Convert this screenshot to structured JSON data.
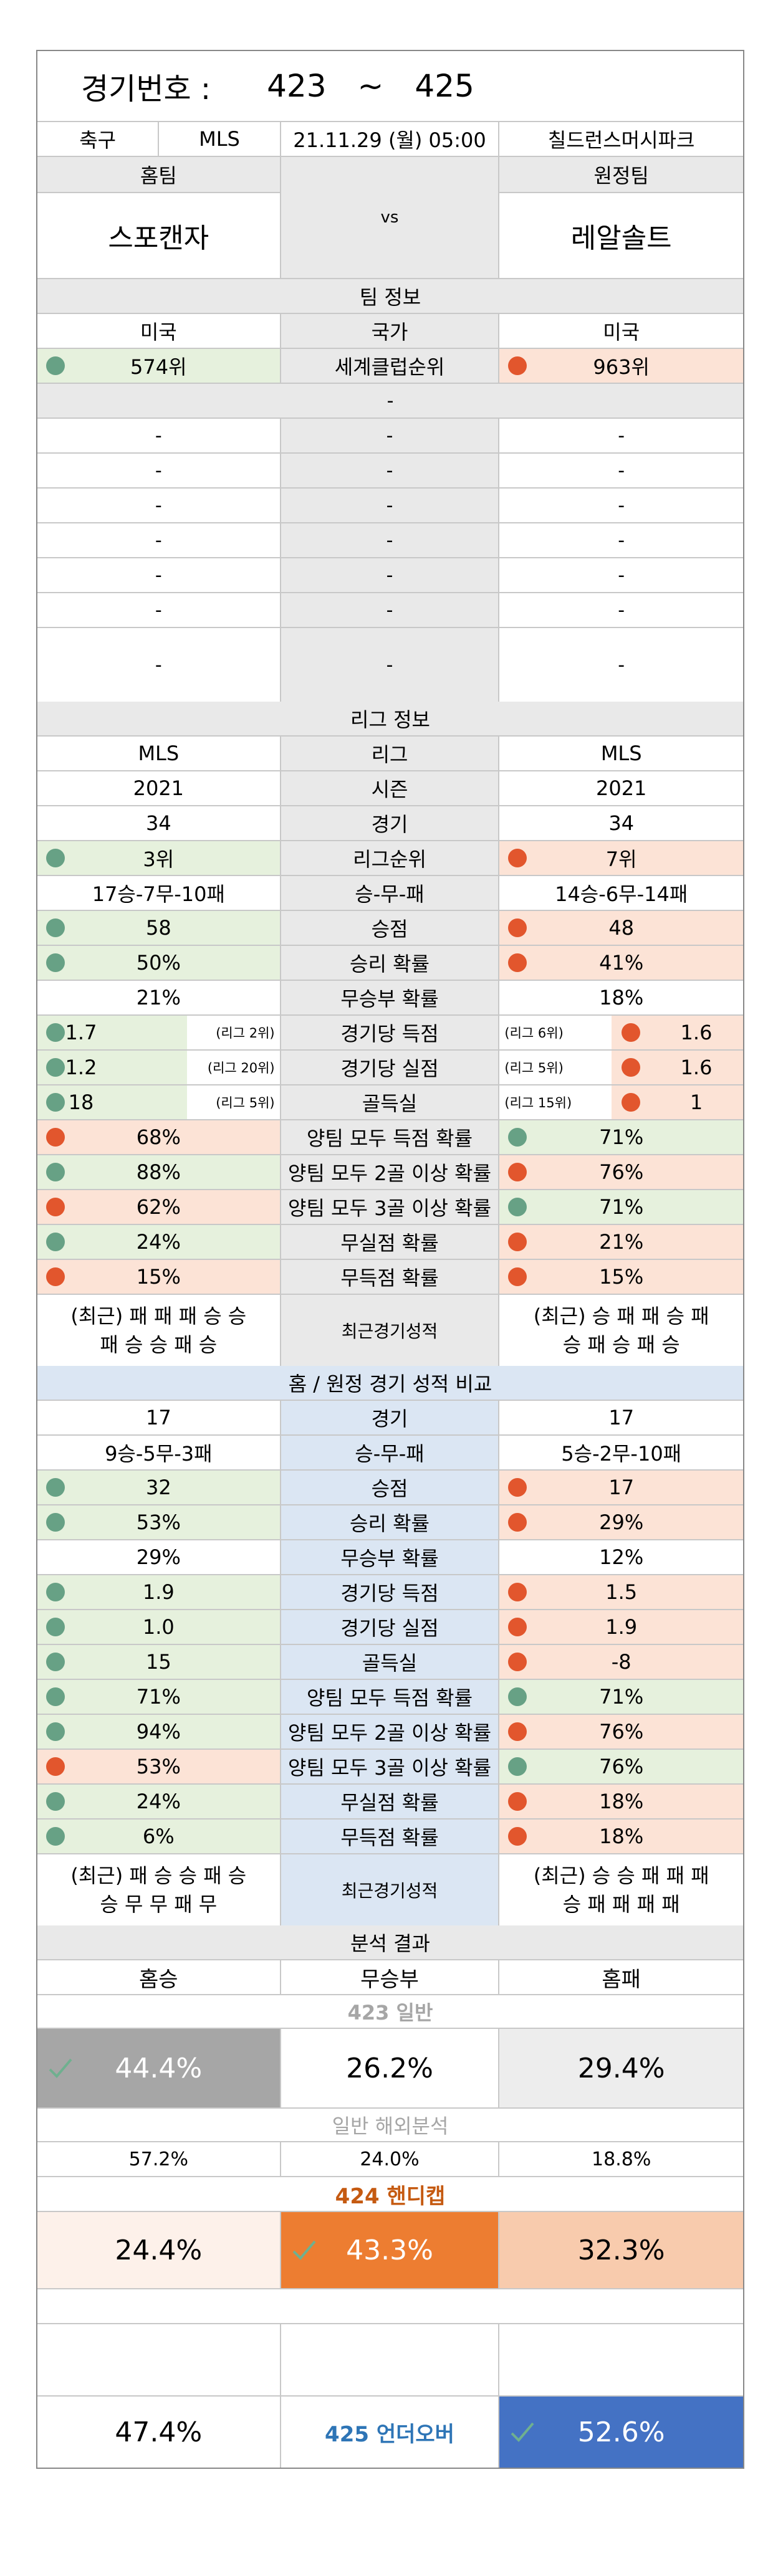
{
  "header": {
    "title_label": "경기번호 :",
    "from": "423",
    "tilde": "~",
    "to": "425"
  },
  "match": {
    "sport": "축구",
    "league": "MLS",
    "datetime": "21.11.29 (월) 05:00",
    "stadium": "칠드런스머시파크"
  },
  "teams": {
    "home_label": "홈팀",
    "away_label": "원정팀",
    "home": "스포캔자",
    "vs": "vs",
    "away": "레알솔트"
  },
  "team_info": {
    "section": "팀 정보",
    "country": {
      "home": "미국",
      "label": "국가",
      "away": "미국"
    },
    "world_rank": {
      "home": "574위",
      "label": "세계클럽순위",
      "away": "963위"
    },
    "subheader": "-",
    "blank_rows": [
      [
        "-",
        "-",
        "-"
      ],
      [
        "-",
        "-",
        "-"
      ],
      [
        "-",
        "-",
        "-"
      ],
      [
        "-",
        "-",
        "-"
      ],
      [
        "-",
        "-",
        "-"
      ],
      [
        "-",
        "-",
        "-"
      ],
      [
        "-",
        "-",
        "-"
      ]
    ]
  },
  "league_info": {
    "section": "리그 정보",
    "league": {
      "home": "MLS",
      "label": "리그",
      "away": "MLS"
    },
    "season": {
      "home": "2021",
      "label": "시즌",
      "away": "2021"
    },
    "games": {
      "home": "34",
      "label": "경기",
      "away": "34"
    },
    "rank": {
      "home": "3위",
      "label": "리그순위",
      "away": "7위"
    },
    "wdl": {
      "home": "17승-7무-10패",
      "label": "승-무-패",
      "away": "14승-6무-14패"
    },
    "points": {
      "home": "58",
      "label": "승점",
      "away": "48"
    },
    "win_rate": {
      "home": "50%",
      "label": "승리 확률",
      "away": "41%"
    },
    "draw_rate": {
      "home": "21%",
      "label": "무승부 확률",
      "away": "18%"
    },
    "gf": {
      "home": "1.7",
      "home_rank": "(리그 2위)",
      "label": "경기당 득점",
      "away_rank": "(리그 6위)",
      "away": "1.6"
    },
    "ga": {
      "home": "1.2",
      "home_rank": "(리그 20위)",
      "label": "경기당 실점",
      "away_rank": "(리그 5위)",
      "away": "1.6"
    },
    "gd": {
      "home": "18",
      "home_rank": "(리그 5위)",
      "label": "골득실",
      "away_rank": "(리그 15위)",
      "away": "1"
    },
    "btts": {
      "home": "68%",
      "label": "양팀 모두 득점 확률",
      "away": "71%"
    },
    "btts2": {
      "home": "88%",
      "label": "양팀 모두 2골 이상 확률",
      "away": "76%"
    },
    "btts3": {
      "home": "62%",
      "label": "양팀 모두 3골 이상 확률",
      "away": "71%"
    },
    "cs": {
      "home": "24%",
      "label": "무실점 확률",
      "away": "21%"
    },
    "fts": {
      "home": "15%",
      "label": "무득점 확률",
      "away": "15%"
    },
    "recent": {
      "home_1": "(최근) 패 패 패 승 승",
      "home_2": "패 승 승 패 승",
      "label": "최근경기성적",
      "away_1": "(최근) 승 패 패 승 패",
      "away_2": "승 패 승 패 승"
    }
  },
  "homeaway": {
    "section": "홈 / 원정 경기 성적 비교",
    "games": {
      "home": "17",
      "label": "경기",
      "away": "17"
    },
    "wdl": {
      "home": "9승-5무-3패",
      "label": "승-무-패",
      "away": "5승-2무-10패"
    },
    "points": {
      "home": "32",
      "label": "승점",
      "away": "17"
    },
    "win_rate": {
      "home": "53%",
      "label": "승리 확률",
      "away": "29%"
    },
    "draw_rate": {
      "home": "29%",
      "label": "무승부 확률",
      "away": "12%"
    },
    "gf": {
      "home": "1.9",
      "label": "경기당 득점",
      "away": "1.5"
    },
    "ga": {
      "home": "1.0",
      "label": "경기당 실점",
      "away": "1.9"
    },
    "gd": {
      "home": "15",
      "label": "골득실",
      "away": "-8"
    },
    "btts": {
      "home": "71%",
      "label": "양팀 모두 득점 확률",
      "away": "71%"
    },
    "btts2": {
      "home": "94%",
      "label": "양팀 모두 2골 이상 확률",
      "away": "76%"
    },
    "btts3": {
      "home": "53%",
      "label": "양팀 모두 3골 이상 확률",
      "away": "76%"
    },
    "cs": {
      "home": "24%",
      "label": "무실점 확률",
      "away": "18%"
    },
    "fts": {
      "home": "6%",
      "label": "무득점 확률",
      "away": "18%"
    },
    "recent": {
      "home_1": "(최근) 패 승 승 패 승",
      "home_2": "승 무 무 패 무",
      "label": "최근경기성적",
      "away_1": "(최근) 승 승 패 패 패",
      "away_2": "승 패 패 패 패"
    }
  },
  "analysis": {
    "section": "분석 결과",
    "cols": {
      "home_win": "홈승",
      "draw": "무승부",
      "home_loss": "홈패"
    },
    "general_title": "423 일반",
    "general": {
      "home_win": "44.4%",
      "draw": "26.2%",
      "home_loss": "29.4%"
    },
    "overseas_title": "일반 해외분석",
    "overseas": {
      "home_win": "57.2%",
      "draw": "24.0%",
      "home_loss": "18.8%"
    },
    "handicap_title": "424 핸디캡",
    "handicap": {
      "home_win": "24.4%",
      "draw": "43.3%",
      "home_loss": "32.3%"
    },
    "underover": {
      "under": "47.4%",
      "title": "425 언더오버",
      "over": "52.6%"
    }
  },
  "colors": {
    "green_dot": "#67a185",
    "orange_dot": "#e2562d",
    "gray_pick": "#a6a6a6",
    "orange_pick": "#ed7d31",
    "blue_pick": "#4472c4",
    "handicap_title": "#c55a11",
    "underover_title": "#2e75b6"
  }
}
